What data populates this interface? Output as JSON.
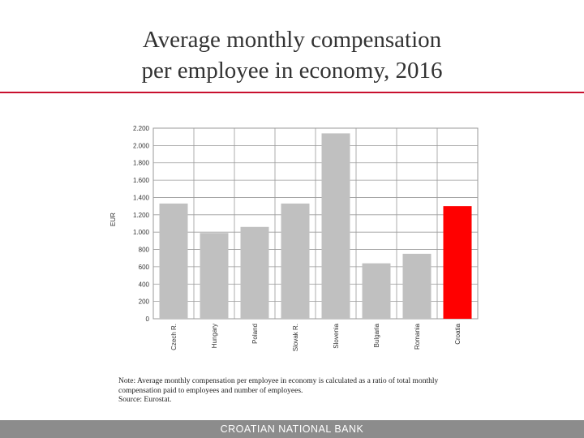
{
  "slide": {
    "title_line1": "Average monthly compensation",
    "title_line2": "per employee in economy, 2016",
    "note_line1": "Note: Average monthly compensation per employee in economy is calculated as a ratio of total monthly",
    "note_line2": "compensation paid to employees and number of employees.",
    "note_line3": "Source: Eurostat.",
    "footer": "CROATIAN NATIONAL BANK",
    "accent_color": "#c8102e"
  },
  "chart_data": {
    "type": "bar",
    "title": "",
    "xlabel": "",
    "ylabel": "EUR",
    "ylim": [
      0,
      2200
    ],
    "yticks": [
      0,
      200,
      400,
      600,
      800,
      1000,
      1200,
      1400,
      1600,
      1800,
      2000,
      2200
    ],
    "ytick_labels": [
      "0",
      "200",
      "400",
      "600",
      "800",
      "1.000",
      "1.200",
      "1.400",
      "1.600",
      "1.800",
      "2.000",
      "2.200"
    ],
    "categories": [
      "Czech R.",
      "Hungary",
      "Poland",
      "Slovak R.",
      "Slovenia",
      "Bulgaria",
      "Romania",
      "Croatia"
    ],
    "values": [
      1330,
      990,
      1060,
      1330,
      2140,
      640,
      750,
      1300
    ],
    "bar_colors": [
      "#c0c0c0",
      "#c0c0c0",
      "#c0c0c0",
      "#c0c0c0",
      "#c0c0c0",
      "#c0c0c0",
      "#c0c0c0",
      "#ff0000"
    ],
    "grid": true,
    "legend": "none"
  }
}
